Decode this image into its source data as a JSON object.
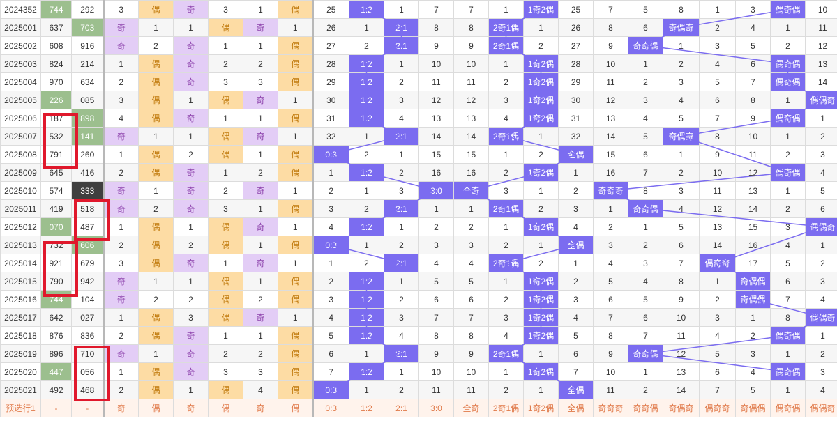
{
  "columns": [
    "issue",
    "n1",
    "n2",
    "c3",
    "c4",
    "c5",
    "c6",
    "c7",
    "c8",
    "c9",
    "c10",
    "c11",
    "c12",
    "c13",
    "c14",
    "c15",
    "c16",
    "c17",
    "c18",
    "c19",
    "c20",
    "c21",
    "c22",
    "c23",
    "c24"
  ],
  "rows": [
    {
      "issue": "2024352",
      "n1": "744",
      "n2": "292",
      "c3": "3",
      "c4": "偶",
      "c5": "奇",
      "c6": "3",
      "c7": "1",
      "c8": "偶",
      "c9": "25",
      "c10": "1:2",
      "c11": "1",
      "c12": "7",
      "c13": "7",
      "c14": "1",
      "c15": "1奇2偶",
      "c16": "25",
      "c17": "7",
      "c18": "5",
      "c19": "8",
      "c20": "1",
      "c21": "3",
      "c22": "偶奇偶",
      "c23": "10",
      "c24": ""
    },
    {
      "issue": "2025001",
      "n1": "637",
      "n2": "703",
      "c3": "奇",
      "c4": "1",
      "c5": "1",
      "c6": "偶",
      "c7": "奇",
      "c8": "1",
      "c9": "26",
      "c10": "1",
      "c11": "2:1",
      "c12": "8",
      "c13": "8",
      "c14": "2奇1偶",
      "c15": "1",
      "c16": "26",
      "c17": "8",
      "c18": "6",
      "c19": "奇偶奇",
      "c20": "2",
      "c21": "4",
      "c22": "1",
      "c23": "11",
      "c24": ""
    },
    {
      "issue": "2025002",
      "n1": "608",
      "n2": "916",
      "c3": "奇",
      "c4": "2",
      "c5": "奇",
      "c6": "1",
      "c7": "1",
      "c8": "偶",
      "c9": "27",
      "c10": "2",
      "c11": "2:1",
      "c12": "9",
      "c13": "9",
      "c14": "2奇1偶",
      "c15": "2",
      "c16": "27",
      "c17": "9",
      "c18": "奇奇偶",
      "c19": "1",
      "c20": "3",
      "c21": "5",
      "c22": "2",
      "c23": "12",
      "c24": ""
    },
    {
      "issue": "2025003",
      "n1": "824",
      "n2": "214",
      "c3": "1",
      "c4": "偶",
      "c5": "奇",
      "c6": "2",
      "c7": "2",
      "c8": "偶",
      "c9": "28",
      "c10": "1:2",
      "c11": "1",
      "c12": "10",
      "c13": "10",
      "c14": "1",
      "c15": "1奇2偶",
      "c16": "28",
      "c17": "10",
      "c18": "1",
      "c19": "2",
      "c20": "4",
      "c21": "6",
      "c22": "偶奇偶",
      "c23": "13",
      "c24": ""
    },
    {
      "issue": "2025004",
      "n1": "970",
      "n2": "634",
      "c3": "2",
      "c4": "偶",
      "c5": "奇",
      "c6": "3",
      "c7": "3",
      "c8": "偶",
      "c9": "29",
      "c10": "1:2",
      "c11": "2",
      "c12": "11",
      "c13": "11",
      "c14": "2",
      "c15": "1奇2偶",
      "c16": "29",
      "c17": "11",
      "c18": "2",
      "c19": "3",
      "c20": "5",
      "c21": "7",
      "c22": "偶奇偶",
      "c23": "14",
      "c24": ""
    },
    {
      "issue": "2025005",
      "n1": "226",
      "n2": "085",
      "c3": "3",
      "c4": "偶",
      "c5": "1",
      "c6": "偶",
      "c7": "奇",
      "c8": "1",
      "c9": "30",
      "c10": "1:2",
      "c11": "3",
      "c12": "12",
      "c13": "12",
      "c14": "3",
      "c15": "1奇2偶",
      "c16": "30",
      "c17": "12",
      "c18": "3",
      "c19": "4",
      "c20": "6",
      "c21": "8",
      "c22": "1",
      "c23": "偶偶奇",
      "c24": ""
    },
    {
      "issue": "2025006",
      "n1": "187",
      "n2": "898",
      "c3": "4",
      "c4": "偶",
      "c5": "奇",
      "c6": "1",
      "c7": "1",
      "c8": "偶",
      "c9": "31",
      "c10": "1:2",
      "c11": "4",
      "c12": "13",
      "c13": "13",
      "c14": "4",
      "c15": "1奇2偶",
      "c16": "31",
      "c17": "13",
      "c18": "4",
      "c19": "5",
      "c20": "7",
      "c21": "9",
      "c22": "偶奇偶",
      "c23": "1",
      "c24": ""
    },
    {
      "issue": "2025007",
      "n1": "532",
      "n2": "141",
      "c3": "奇",
      "c4": "1",
      "c5": "1",
      "c6": "偶",
      "c7": "奇",
      "c8": "1",
      "c9": "32",
      "c10": "1",
      "c11": "2:1",
      "c12": "14",
      "c13": "14",
      "c14": "2奇1偶",
      "c15": "1",
      "c16": "32",
      "c17": "14",
      "c18": "5",
      "c19": "奇偶奇",
      "c20": "8",
      "c21": "10",
      "c22": "1",
      "c23": "2",
      "c24": ""
    },
    {
      "issue": "2025008",
      "n1": "791",
      "n2": "260",
      "c3": "1",
      "c4": "偶",
      "c5": "2",
      "c6": "偶",
      "c7": "1",
      "c8": "偶",
      "c9": "0:3",
      "c10": "2",
      "c11": "1",
      "c12": "15",
      "c13": "15",
      "c14": "1",
      "c15": "2",
      "c16": "全偶",
      "c17": "15",
      "c18": "6",
      "c19": "1",
      "c20": "9",
      "c21": "11",
      "c22": "2",
      "c23": "3",
      "c24": ""
    },
    {
      "issue": "2025009",
      "n1": "645",
      "n2": "416",
      "c3": "2",
      "c4": "偶",
      "c5": "奇",
      "c6": "1",
      "c7": "2",
      "c8": "偶",
      "c9": "1",
      "c10": "1:2",
      "c11": "2",
      "c12": "16",
      "c13": "16",
      "c14": "2",
      "c15": "1奇2偶",
      "c16": "1",
      "c17": "16",
      "c18": "7",
      "c19": "2",
      "c20": "10",
      "c21": "12",
      "c22": "偶奇偶",
      "c23": "4",
      "c24": ""
    },
    {
      "issue": "2025010",
      "n1": "574",
      "n2": "333",
      "c3": "奇",
      "c4": "1",
      "c5": "奇",
      "c6": "2",
      "c7": "奇",
      "c8": "1",
      "c9": "2",
      "c10": "1",
      "c11": "3",
      "c12": "3:0",
      "c13": "全奇",
      "c14": "3",
      "c15": "1",
      "c16": "2",
      "c17": "奇奇奇",
      "c18": "8",
      "c19": "3",
      "c20": "11",
      "c21": "13",
      "c22": "1",
      "c23": "5",
      "c24": ""
    },
    {
      "issue": "2025011",
      "n1": "419",
      "n2": "518",
      "c3": "奇",
      "c4": "2",
      "c5": "奇",
      "c6": "3",
      "c7": "1",
      "c8": "偶",
      "c9": "3",
      "c10": "2",
      "c11": "2:1",
      "c12": "1",
      "c13": "1",
      "c14": "2奇1偶",
      "c15": "2",
      "c16": "3",
      "c17": "1",
      "c18": "奇奇偶",
      "c19": "4",
      "c20": "12",
      "c21": "14",
      "c22": "2",
      "c23": "6",
      "c24": ""
    },
    {
      "issue": "2025012",
      "n1": "070",
      "n2": "487",
      "c3": "1",
      "c4": "偶",
      "c5": "1",
      "c6": "偶",
      "c7": "奇",
      "c8": "1",
      "c9": "4",
      "c10": "1:2",
      "c11": "1",
      "c12": "2",
      "c13": "2",
      "c14": "1",
      "c15": "1奇2偶",
      "c16": "4",
      "c17": "2",
      "c18": "1",
      "c19": "5",
      "c20": "13",
      "c21": "15",
      "c22": "3",
      "c23": "偶偶奇",
      "c24": ""
    },
    {
      "issue": "2025013",
      "n1": "732",
      "n2": "606",
      "c3": "2",
      "c4": "偶",
      "c5": "2",
      "c6": "偶",
      "c7": "1",
      "c8": "偶",
      "c9": "0:3",
      "c10": "1",
      "c11": "2",
      "c12": "3",
      "c13": "3",
      "c14": "2",
      "c15": "1",
      "c16": "全偶",
      "c17": "3",
      "c18": "2",
      "c19": "6",
      "c20": "14",
      "c21": "16",
      "c22": "4",
      "c23": "1",
      "c24": ""
    },
    {
      "issue": "2025014",
      "n1": "921",
      "n2": "679",
      "c3": "3",
      "c4": "偶",
      "c5": "奇",
      "c6": "1",
      "c7": "奇",
      "c8": "1",
      "c9": "1",
      "c10": "2",
      "c11": "2:1",
      "c12": "4",
      "c13": "4",
      "c14": "2奇1偶",
      "c15": "2",
      "c16": "1",
      "c17": "4",
      "c18": "3",
      "c19": "7",
      "c20": "偶奇奇",
      "c21": "17",
      "c22": "5",
      "c23": "2",
      "c24": ""
    },
    {
      "issue": "2025015",
      "n1": "790",
      "n2": "942",
      "c3": "奇",
      "c4": "1",
      "c5": "1",
      "c6": "偶",
      "c7": "1",
      "c8": "偶",
      "c9": "2",
      "c10": "1:2",
      "c11": "1",
      "c12": "5",
      "c13": "5",
      "c14": "1",
      "c15": "1奇2偶",
      "c16": "2",
      "c17": "5",
      "c18": "4",
      "c19": "8",
      "c20": "1",
      "c21": "奇偶偶",
      "c22": "6",
      "c23": "3",
      "c24": ""
    },
    {
      "issue": "2025016",
      "n1": "744",
      "n2": "104",
      "c3": "奇",
      "c4": "2",
      "c5": "2",
      "c6": "偶",
      "c7": "2",
      "c8": "偶",
      "c9": "3",
      "c10": "1:2",
      "c11": "2",
      "c12": "6",
      "c13": "6",
      "c14": "2",
      "c15": "1奇2偶",
      "c16": "3",
      "c17": "6",
      "c18": "5",
      "c19": "9",
      "c20": "2",
      "c21": "奇偶偶",
      "c22": "7",
      "c23": "4",
      "c24": ""
    },
    {
      "issue": "2025017",
      "n1": "642",
      "n2": "027",
      "c3": "1",
      "c4": "偶",
      "c5": "3",
      "c6": "偶",
      "c7": "奇",
      "c8": "1",
      "c9": "4",
      "c10": "1:2",
      "c11": "3",
      "c12": "7",
      "c13": "7",
      "c14": "3",
      "c15": "1奇2偶",
      "c16": "4",
      "c17": "7",
      "c18": "6",
      "c19": "10",
      "c20": "3",
      "c21": "1",
      "c22": "8",
      "c23": "偶偶奇",
      "c24": ""
    },
    {
      "issue": "2025018",
      "n1": "876",
      "n2": "836",
      "c3": "2",
      "c4": "偶",
      "c5": "奇",
      "c6": "1",
      "c7": "1",
      "c8": "偶",
      "c9": "5",
      "c10": "1:2",
      "c11": "4",
      "c12": "8",
      "c13": "8",
      "c14": "4",
      "c15": "1奇2偶",
      "c16": "5",
      "c17": "8",
      "c18": "7",
      "c19": "11",
      "c20": "4",
      "c21": "2",
      "c22": "偶奇偶",
      "c23": "1",
      "c24": ""
    },
    {
      "issue": "2025019",
      "n1": "896",
      "n2": "710",
      "c3": "奇",
      "c4": "1",
      "c5": "奇",
      "c6": "2",
      "c7": "2",
      "c8": "偶",
      "c9": "6",
      "c10": "1",
      "c11": "2:1",
      "c12": "9",
      "c13": "9",
      "c14": "2奇1偶",
      "c15": "1",
      "c16": "6",
      "c17": "9",
      "c18": "奇奇偶",
      "c19": "12",
      "c20": "5",
      "c21": "3",
      "c22": "1",
      "c23": "2",
      "c24": ""
    },
    {
      "issue": "2025020",
      "n1": "447",
      "n2": "056",
      "c3": "1",
      "c4": "偶",
      "c5": "奇",
      "c6": "3",
      "c7": "3",
      "c8": "偶",
      "c9": "7",
      "c10": "1:2",
      "c11": "1",
      "c12": "10",
      "c13": "10",
      "c14": "1",
      "c15": "1奇2偶",
      "c16": "7",
      "c17": "10",
      "c18": "1",
      "c19": "13",
      "c20": "6",
      "c21": "4",
      "c22": "偶奇偶",
      "c23": "3",
      "c24": ""
    },
    {
      "issue": "2025021",
      "n1": "492",
      "n2": "468",
      "c3": "2",
      "c4": "偶",
      "c5": "1",
      "c6": "偶",
      "c7": "4",
      "c8": "偶",
      "c9": "0:3",
      "c10": "1",
      "c11": "2",
      "c12": "11",
      "c13": "11",
      "c14": "2",
      "c15": "1",
      "c16": "全偶",
      "c17": "11",
      "c18": "2",
      "c19": "14",
      "c20": "7",
      "c21": "5",
      "c22": "1",
      "c23": "4",
      "c24": ""
    }
  ],
  "footer": {
    "issue": "预选行1",
    "n1": "-",
    "n2": "-",
    "c3": "奇",
    "c4": "偶",
    "c5": "奇",
    "c6": "偶",
    "c7": "奇",
    "c8": "偶",
    "c9": "0:3",
    "c10": "1:2",
    "c11": "2:1",
    "c12": "3:0",
    "c13": "全奇",
    "c14": "2奇1偶",
    "c15": "1奇2偶",
    "c16": "全偶",
    "c17": "奇奇奇",
    "c18": "奇奇偶",
    "c19": "奇偶奇",
    "c20": "偶奇奇",
    "c21": "奇偶偶",
    "c22": "偶奇偶",
    "c23": "偶偶奇",
    "c24": "偶偶偶"
  },
  "highlights": {
    "green": [
      [
        0,
        "n1"
      ],
      [
        1,
        "n2"
      ],
      [
        5,
        "n1"
      ],
      [
        6,
        "n2"
      ],
      [
        7,
        "n2"
      ],
      [
        12,
        "n1"
      ],
      [
        13,
        "n2"
      ],
      [
        16,
        "n1"
      ],
      [
        20,
        "n1"
      ]
    ],
    "dark": [
      [
        10,
        "n2"
      ]
    ]
  },
  "colors": {
    "purple_bg": "#e3cdf6",
    "orange_bg": "#fddca4",
    "blue_bg": "#7b6cf0",
    "green_bg": "#9cbf8e",
    "dark_bg": "#3f3f3f",
    "redbox": "#e0182c",
    "line": "#7b6cf0",
    "footer_text": "#e07a4a"
  }
}
